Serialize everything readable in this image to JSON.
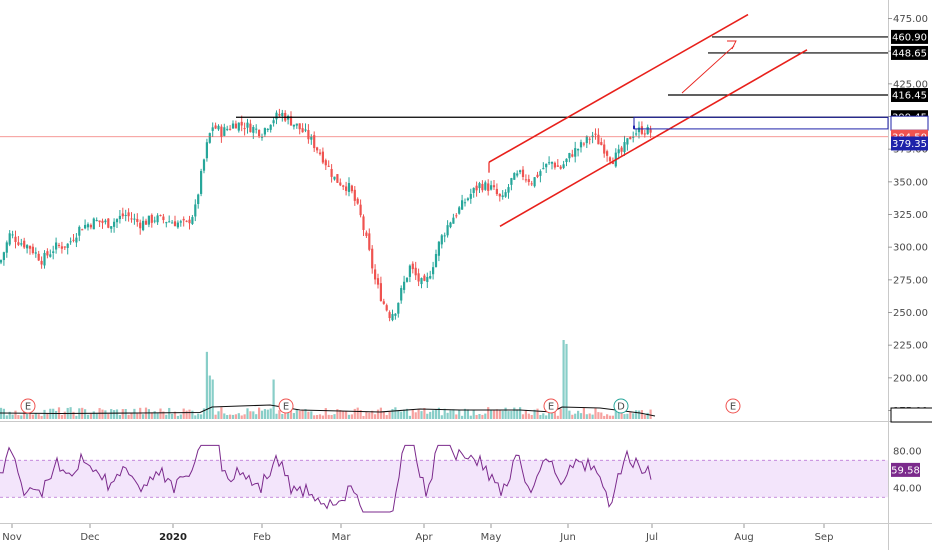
{
  "chart_data": {
    "type": "candlestick",
    "price_axis": {
      "ticks": [
        "475.00",
        "450.00",
        "425.00",
        "400.00",
        "375.00",
        "350.00",
        "325.00",
        "300.00",
        "275.00",
        "250.00",
        "225.00",
        "200.00",
        "175.00"
      ],
      "tick_values": [
        475,
        450,
        425,
        400,
        375,
        350,
        325,
        300,
        275,
        250,
        225,
        200,
        175
      ],
      "ylim": [
        165,
        482
      ]
    },
    "time_axis": {
      "labels": [
        "Nov",
        "Dec",
        "2020",
        "Feb",
        "Mar",
        "Apr",
        "May",
        "Jun",
        "Jul",
        "Aug",
        "Sep"
      ],
      "bold": [
        false,
        false,
        true,
        false,
        false,
        false,
        false,
        false,
        false,
        false,
        false
      ]
    },
    "price_tags": [
      {
        "label": "460.90",
        "value": 460.9,
        "bg": "#000000",
        "fg": "#ffffff"
      },
      {
        "label": "448.65",
        "value": 448.65,
        "bg": "#000000",
        "fg": "#ffffff"
      },
      {
        "label": "416.45",
        "value": 416.45,
        "bg": "#000000",
        "fg": "#ffffff"
      },
      {
        "label": "399.45",
        "value": 399.45,
        "bg": "#000000",
        "fg": "#ffffff"
      },
      {
        "label": "394.90",
        "value": 394.9,
        "bg": "#ffffff",
        "fg": "#1e22aa",
        "border": "#1e22aa"
      },
      {
        "label": "384.50",
        "value": 384.5,
        "bg": "#ef5350",
        "fg": "#ffffff"
      },
      {
        "label": "379.35",
        "value": 379.35,
        "bg": "#1e22aa",
        "fg": "#ffffff"
      }
    ],
    "volume_tag": "2750103",
    "rsi": {
      "ticks": [
        "80.00",
        "40.00"
      ],
      "tick_values": [
        80,
        40
      ],
      "value_label": "59.58",
      "band": [
        30,
        70
      ]
    },
    "events": [
      "E",
      "E",
      "E",
      "D",
      "E"
    ],
    "colors": {
      "up": "#26a69a",
      "down": "#ef5350",
      "channel": "#e8201b",
      "level": "#000000",
      "box": "#1e22aa",
      "rsi_line": "#7b2a8c",
      "rsi_band": "#f3e5fb"
    }
  }
}
